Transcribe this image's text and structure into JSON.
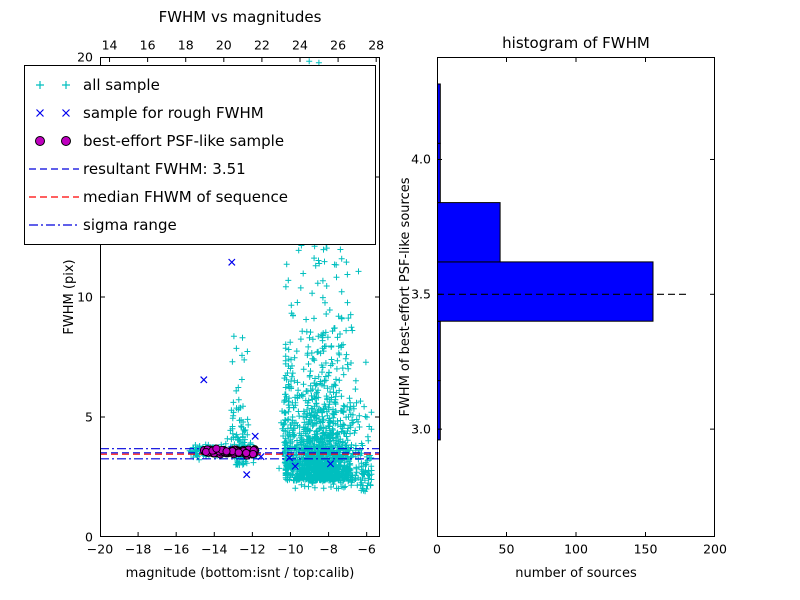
{
  "colors": {
    "all_sample": "#00bfbf",
    "rough_sample": "#0000ee",
    "psf_fill": "#bf00bf",
    "psf_edge": "#000000",
    "resultant_line": "#0000dd",
    "median_line": "#ff0000",
    "sigma_line": "#0000dd",
    "bar_fill": "#0000ff",
    "bar_edge": "#000000",
    "hist_median": "#000000",
    "axis": "#000000"
  },
  "legend": {
    "items": [
      {
        "label": "all sample",
        "marker": "plus",
        "color": "all_sample"
      },
      {
        "label": "sample for rough FWHM",
        "marker": "x",
        "color": "rough_sample"
      },
      {
        "label": "best-effort PSF-like sample",
        "marker": "circle",
        "color": "psf_fill"
      },
      {
        "label": "resultant FWHM: 3.51",
        "marker": "dashed",
        "color": "resultant_line"
      },
      {
        "label": "median FHWM of sequence",
        "marker": "dashed",
        "color": "median_line"
      },
      {
        "label": "sigma range",
        "marker": "dashdot",
        "color": "sigma_line"
      }
    ]
  },
  "chart_data": [
    {
      "type": "scatter",
      "title": "FWHM vs magnitudes",
      "xlabel": "magnitude (bottom:isnt / top:calib)",
      "ylabel": "FWHM (pix)",
      "xlim": [
        -20,
        -5.3
      ],
      "ylim": [
        0,
        20
      ],
      "xticks": {
        "values": [
          -20,
          -18,
          -16,
          -14,
          -12,
          -10,
          -8,
          -6
        ],
        "labels": [
          "−20",
          "−18",
          "−16",
          "−14",
          "−12",
          "−10",
          "−8",
          "−6"
        ]
      },
      "top_xticks": {
        "values": [
          -19.5,
          -17.5,
          -15.5,
          -13.5,
          -11.5,
          -9.5,
          -7.5,
          -5.5
        ],
        "labels": [
          "14",
          "16",
          "18",
          "20",
          "22",
          "24",
          "26",
          "28"
        ]
      },
      "yticks": {
        "values": [
          0,
          5,
          10,
          15,
          20
        ],
        "labels": [
          "0",
          "5",
          "10",
          "15",
          "20"
        ]
      },
      "resultant_fwhm": 3.51,
      "lines": [
        {
          "name": "sigma-upper",
          "y": 3.68,
          "style": "dashdot",
          "color": "sigma_line"
        },
        {
          "name": "sigma-lower",
          "y": 3.26,
          "style": "dashdot",
          "color": "sigma_line"
        },
        {
          "name": "resultant-fwhm",
          "y": 3.51,
          "style": "dashed",
          "color": "resultant_line"
        },
        {
          "name": "median-fwhm",
          "y": 3.45,
          "style": "dashed",
          "color": "median_line"
        }
      ],
      "series": {
        "all_sample_clusters": [
          {
            "seed": 11,
            "n": 1250,
            "x": [
              "normal",
              -8.35,
              0.95,
              -10.25,
              -5.75
            ],
            "y": [
              "exp",
              2.35,
              1.45,
              20.2
            ]
          },
          {
            "seed": 12,
            "n": 110,
            "x": [
              "normal",
              -8.3,
              0.8,
              -9.8,
              -6.8
            ],
            "y": [
              "uniform",
              6.5,
              20.2
            ]
          },
          {
            "seed": 13,
            "n": 120,
            "x": [
              "normal",
              -10.05,
              0.22,
              -10.7,
              -9.5
            ],
            "y": [
              "exp",
              2.8,
              2.0,
              12.5
            ]
          },
          {
            "seed": 14,
            "n": 90,
            "x": [
              "normal",
              -12.68,
              0.28,
              -13.4,
              -12.1
            ],
            "y": [
              "exp",
              3.0,
              1.6,
              11.8
            ]
          },
          {
            "seed": 15,
            "n": 150,
            "x": [
              "uniform",
              -15.3,
              -11.7
            ],
            "y": [
              "normal",
              3.55,
              0.14,
              3.1,
              4.1
            ]
          },
          {
            "seed": 16,
            "n": 30,
            "x": [
              "uniform",
              -6.4,
              -5.7
            ],
            "y": [
              "uniform",
              1.9,
              3.6
            ]
          },
          {
            "seed": 17,
            "n": 40,
            "x": [
              "uniform",
              -10.0,
              -6.0
            ],
            "y": [
              "uniform",
              2.0,
              2.5
            ]
          }
        ],
        "rough_sample_points": [
          [
            -14.55,
            6.55
          ],
          [
            -13.08,
            11.45
          ],
          [
            -14.3,
            3.62
          ],
          [
            -13.75,
            3.5
          ],
          [
            -13.3,
            3.66
          ],
          [
            -12.85,
            3.48
          ],
          [
            -12.5,
            3.58
          ],
          [
            -12.15,
            3.42
          ],
          [
            -11.85,
            4.2
          ],
          [
            -11.55,
            3.35
          ],
          [
            -10.05,
            3.3
          ],
          [
            -9.75,
            2.95
          ],
          [
            -12.3,
            2.6
          ],
          [
            -7.9,
            3.05
          ]
        ],
        "psf_cluster": {
          "seed": 21,
          "n": 75,
          "x": [
            "uniform",
            -14.55,
            -11.8
          ],
          "y": [
            "normal",
            3.56,
            0.07,
            3.38,
            3.74
          ]
        }
      }
    },
    {
      "type": "bar",
      "orientation": "horizontal",
      "title": "histogram of FWHM",
      "xlabel": "number of sources",
      "ylabel": "FWHM of best-effort PSF-like sources",
      "xlim": [
        0,
        200
      ],
      "ylim": [
        2.6,
        4.38
      ],
      "xticks": {
        "values": [
          0,
          50,
          100,
          150,
          200
        ],
        "labels": [
          "0",
          "50",
          "100",
          "150",
          "200"
        ]
      },
      "yticks": {
        "values": [
          3.0,
          3.5,
          4.0
        ],
        "labels": [
          "3.0",
          "3.5",
          "4.0"
        ]
      },
      "bins": [
        {
          "y0": 2.96,
          "y1": 3.18,
          "count": 2
        },
        {
          "y0": 3.18,
          "y1": 3.4,
          "count": 2
        },
        {
          "y0": 3.4,
          "y1": 3.62,
          "count": 155
        },
        {
          "y0": 3.62,
          "y1": 3.84,
          "count": 45
        },
        {
          "y0": 3.84,
          "y1": 4.06,
          "count": 2
        },
        {
          "y0": 4.06,
          "y1": 4.28,
          "count": 2
        }
      ],
      "median_line": {
        "y": 3.5,
        "x_start": 0,
        "x_end": 182
      }
    }
  ]
}
